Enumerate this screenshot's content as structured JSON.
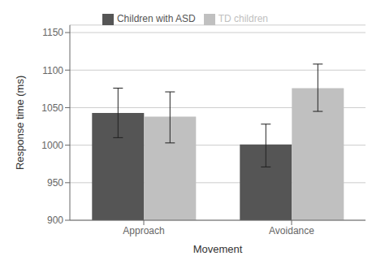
{
  "chart_data": {
    "type": "bar",
    "xlabel": "Movement",
    "ylabel": "Response time (ms)",
    "categories": [
      "Approach",
      "Avoidance"
    ],
    "series": [
      {
        "name": "Children with ASD",
        "color": "#555555",
        "values": [
          1043,
          1001
        ],
        "error_lower": [
          33,
          30
        ],
        "error_upper": [
          33,
          27
        ]
      },
      {
        "name": "TD children",
        "color": "#c0c0c0",
        "values": [
          1038,
          1076
        ],
        "error_lower": [
          35,
          31
        ],
        "error_upper": [
          33,
          32
        ]
      }
    ],
    "ylim": [
      900,
      1160
    ],
    "yticks": [
      900,
      950,
      1000,
      1050,
      1100,
      1150
    ],
    "grid": true,
    "legend": "top"
  }
}
